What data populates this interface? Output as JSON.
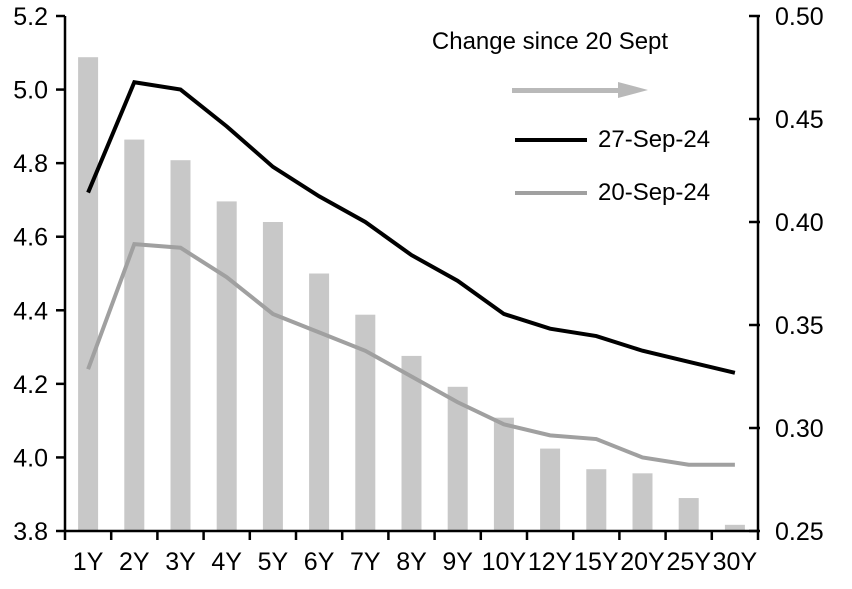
{
  "chart_data": {
    "type": "bar",
    "subtype": "combo-bar-line-dual-axis",
    "categories": [
      "1Y",
      "2Y",
      "3Y",
      "4Y",
      "5Y",
      "6Y",
      "7Y",
      "8Y",
      "9Y",
      "10Y",
      "12Y",
      "15Y",
      "20Y",
      "25Y",
      "30Y"
    ],
    "series": [
      {
        "name": "27-Sep-24",
        "type": "line",
        "axis": "left",
        "color": "#000000",
        "values": [
          4.72,
          5.02,
          5.0,
          4.9,
          4.79,
          4.71,
          4.64,
          4.55,
          4.48,
          4.39,
          4.35,
          4.33,
          4.29,
          4.26,
          4.23
        ]
      },
      {
        "name": "20-Sep-24",
        "type": "line",
        "axis": "left",
        "color": "#a0a0a0",
        "values": [
          4.24,
          4.58,
          4.57,
          4.49,
          4.39,
          4.34,
          4.29,
          4.22,
          4.15,
          4.09,
          4.06,
          4.05,
          4.0,
          3.98,
          3.98
        ]
      },
      {
        "name": "Change since 20 Sept",
        "type": "bar",
        "axis": "right",
        "color": "#c8c8c8",
        "values": [
          0.48,
          0.44,
          0.43,
          0.41,
          0.4,
          0.375,
          0.355,
          0.335,
          0.32,
          0.305,
          0.29,
          0.28,
          0.278,
          0.266,
          0.253
        ]
      }
    ],
    "left_axis": {
      "min": 3.8,
      "max": 5.2,
      "tick_labels": [
        "5.2",
        "5.0",
        "4.8",
        "4.6",
        "4.4",
        "4.2",
        "4.0",
        "3.8"
      ]
    },
    "right_axis": {
      "min": 0.25,
      "max": 0.5,
      "tick_labels": [
        "0.50",
        "0.45",
        "0.40",
        "0.35",
        "0.30",
        "0.25"
      ]
    },
    "title": "",
    "xlabel": "",
    "ylabel": "",
    "grid": false,
    "legend_position": "top-right-inside",
    "legend_arrow_color": "#b9b9b9",
    "axis_color": "#000000",
    "background_color": "#ffffff"
  }
}
